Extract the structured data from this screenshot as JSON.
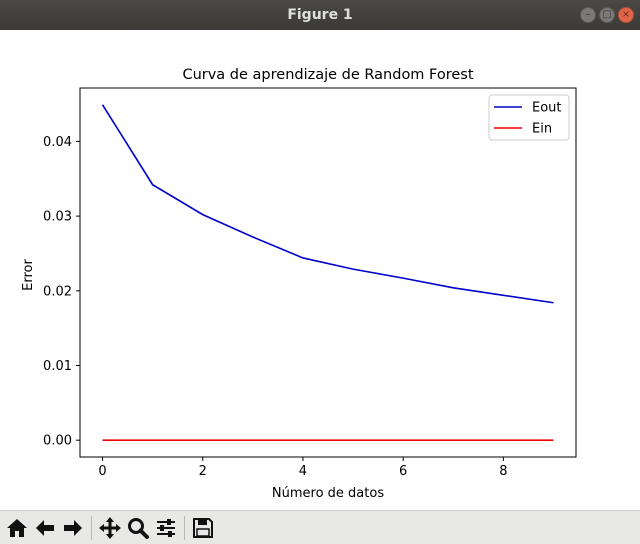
{
  "window": {
    "title": "Figure 1"
  },
  "toolbar": {
    "icons": [
      "home-icon",
      "back-icon",
      "forward-icon",
      "pan-icon",
      "zoom-icon",
      "configure-subplots-icon",
      "save-icon"
    ]
  },
  "chart_data": {
    "type": "line",
    "title": "Curva de aprendizaje de Random Forest",
    "xlabel": "Número de datos",
    "ylabel": "Error",
    "x": [
      0,
      1,
      2,
      3,
      4,
      5,
      6,
      7,
      8,
      9
    ],
    "series": [
      {
        "name": "Eout",
        "color": "#0000cc",
        "values": [
          0.0449,
          0.0342,
          0.0302,
          0.0272,
          0.0244,
          0.0229,
          0.0217,
          0.0204,
          0.0194,
          0.0184
        ]
      },
      {
        "name": "Ein",
        "color": "#ee0000",
        "values": [
          0,
          0,
          0,
          0,
          0,
          0,
          0,
          0,
          0,
          0
        ]
      }
    ],
    "xlim": [
      -0.45,
      9.45
    ],
    "ylim": [
      -0.00225,
      0.04715
    ],
    "xticks": [
      0,
      2,
      4,
      6,
      8
    ],
    "xtick_labels": [
      "0",
      "2",
      "4",
      "6",
      "8"
    ],
    "yticks": [
      0,
      0.01,
      0.02,
      0.03,
      0.04
    ],
    "ytick_labels": [
      "0.00",
      "0.01",
      "0.02",
      "0.03",
      "0.04"
    ],
    "grid": false,
    "legend": "top-right"
  }
}
